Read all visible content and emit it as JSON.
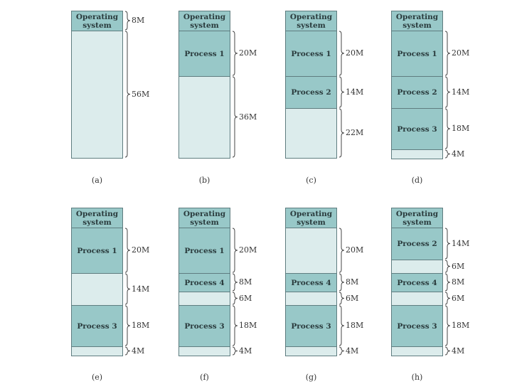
{
  "diagrams": [
    {
      "caption": "(a)",
      "segments": [
        {
          "label": "Operating system",
          "size": "8M",
          "type": "os"
        },
        {
          "label": "",
          "size": "56M",
          "type": "free"
        }
      ]
    },
    {
      "caption": "(b)",
      "segments": [
        {
          "label": "Operating system",
          "size": "",
          "type": "os"
        },
        {
          "label": "Process 1",
          "size": "20M",
          "type": "process"
        },
        {
          "label": "",
          "size": "36M",
          "type": "free"
        }
      ]
    },
    {
      "caption": "(c)",
      "segments": [
        {
          "label": "Operating system",
          "size": "",
          "type": "os"
        },
        {
          "label": "Process 1",
          "size": "20M",
          "type": "process"
        },
        {
          "label": "Process 2",
          "size": "14M",
          "type": "process"
        },
        {
          "label": "",
          "size": "22M",
          "type": "free"
        }
      ]
    },
    {
      "caption": "(d)",
      "segments": [
        {
          "label": "Operating system",
          "size": "",
          "type": "os"
        },
        {
          "label": "Process 1",
          "size": "20M",
          "type": "process"
        },
        {
          "label": "Process 2",
          "size": "14M",
          "type": "process"
        },
        {
          "label": "Process 3",
          "size": "18M",
          "type": "process"
        },
        {
          "label": "",
          "size": "4M",
          "type": "free"
        }
      ]
    },
    {
      "caption": "(e)",
      "segments": [
        {
          "label": "Operating system",
          "size": "",
          "type": "os"
        },
        {
          "label": "Process 1",
          "size": "20M",
          "type": "process"
        },
        {
          "label": "",
          "size": "14M",
          "type": "free"
        },
        {
          "label": "Process 3",
          "size": "18M",
          "type": "process"
        },
        {
          "label": "",
          "size": "4M",
          "type": "free"
        }
      ]
    },
    {
      "caption": "(f)",
      "segments": [
        {
          "label": "Operating system",
          "size": "",
          "type": "os"
        },
        {
          "label": "Process 1",
          "size": "20M",
          "type": "process"
        },
        {
          "label": "Process 4",
          "size": "8M",
          "type": "process"
        },
        {
          "label": "",
          "size": "6M",
          "type": "free"
        },
        {
          "label": "Process 3",
          "size": "18M",
          "type": "process"
        },
        {
          "label": "",
          "size": "4M",
          "type": "free"
        }
      ]
    },
    {
      "caption": "(g)",
      "segments": [
        {
          "label": "Operating system",
          "size": "",
          "type": "os"
        },
        {
          "label": "",
          "size": "20M",
          "type": "free"
        },
        {
          "label": "Process 4",
          "size": "8M",
          "type": "process"
        },
        {
          "label": "",
          "size": "6M",
          "type": "free"
        },
        {
          "label": "Process 3",
          "size": "18M",
          "type": "process"
        },
        {
          "label": "",
          "size": "4M",
          "type": "free"
        }
      ]
    },
    {
      "caption": "(h)",
      "segments": [
        {
          "label": "Operating system",
          "size": "",
          "type": "os"
        },
        {
          "label": "Process 2",
          "size": "14M",
          "type": "process"
        },
        {
          "label": "",
          "size": "6M",
          "type": "free"
        },
        {
          "label": "Process 4",
          "size": "8M",
          "type": "process"
        },
        {
          "label": "",
          "size": "6M",
          "type": "free"
        },
        {
          "label": "Process 3",
          "size": "18M",
          "type": "process"
        },
        {
          "label": "",
          "size": "4M",
          "type": "free"
        }
      ]
    }
  ],
  "colors": {
    "process": "#98c8c8",
    "free": "#dcecec",
    "os": "#98c8c8",
    "border": "#5f7d80"
  }
}
